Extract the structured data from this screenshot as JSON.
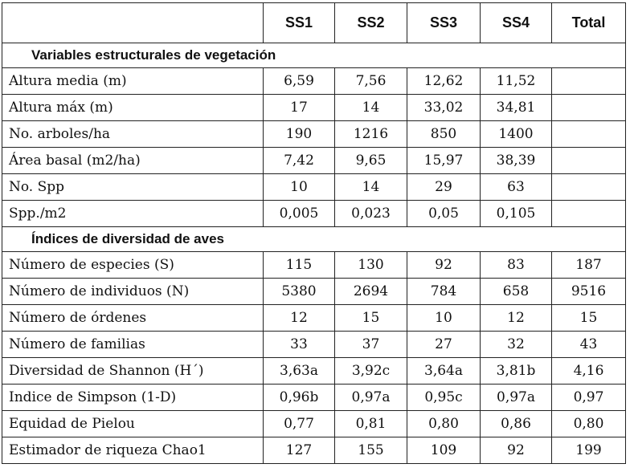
{
  "header": [
    "",
    "SS1",
    "SS2",
    "SS3",
    "SS4",
    "Total"
  ],
  "sections": [
    {
      "title": "Variables estructurales de vegetación",
      "rows": [
        [
          "Altura media (m)",
          "6,59",
          "7,56",
          "12,62",
          "11,52",
          ""
        ],
        [
          "Altura máx (m)",
          "17",
          "14",
          "33,02",
          "34,81",
          ""
        ],
        [
          "No. arboles/ha",
          "190",
          "1216",
          "850",
          "1400",
          ""
        ],
        [
          "Área basal (m2/ha)",
          "7,42",
          "9,65",
          "15,97",
          "38,39",
          ""
        ],
        [
          "No. Spp",
          "10",
          "14",
          "29",
          "63",
          ""
        ],
        [
          "Spp./m2",
          "0,005",
          "0,023",
          "0,05",
          "0,105",
          ""
        ]
      ]
    },
    {
      "title": "Índices de diversidad de aves",
      "rows": [
        [
          "Número de especies (S)",
          "115",
          "130",
          "92",
          "83",
          "187"
        ],
        [
          "Número de individuos (N)",
          "5380",
          "2694",
          "784",
          "658",
          "9516"
        ],
        [
          "Número de órdenes",
          "12",
          "15",
          "10",
          "12",
          "15"
        ],
        [
          "Número de familias",
          "33",
          "37",
          "27",
          "32",
          "43"
        ],
        [
          "Diversidad de Shannon (H´)",
          "3,63a",
          "3,92c",
          "3,64a",
          "3,81b",
          "4,16"
        ],
        [
          "Indice de Simpson (1-D)",
          "0,96b",
          "0,97a",
          "0,95c",
          "0,97a",
          "0,97"
        ],
        [
          "Equidad de Pielou",
          "0,77",
          "0,81",
          "0,80",
          "0,86",
          "0,80"
        ],
        [
          "Estimador de riqueza Chao1",
          "127",
          "155",
          "109",
          "92",
          "199"
        ]
      ]
    }
  ]
}
